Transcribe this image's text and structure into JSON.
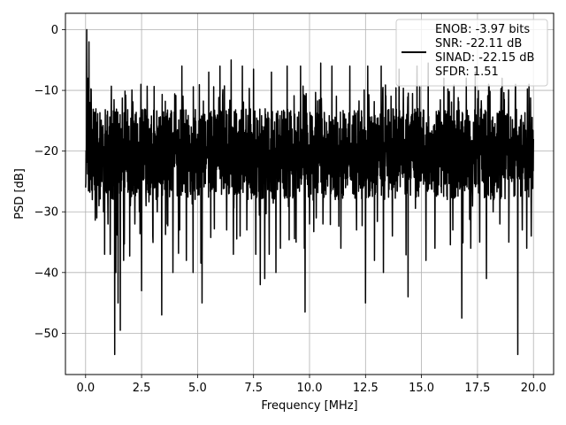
{
  "chart_data": {
    "type": "line",
    "xlabel": "Frequency [MHz]",
    "ylabel": "PSD [dB]",
    "xlim": [
      -0.9,
      20.9
    ],
    "ylim": [
      -56.8,
      2.7
    ],
    "xticks": [
      0.0,
      2.5,
      5.0,
      7.5,
      10.0,
      12.5,
      15.0,
      17.5,
      20.0
    ],
    "xtick_labels": [
      "0.0",
      "2.5",
      "5.0",
      "7.5",
      "10.0",
      "12.5",
      "15.0",
      "17.5",
      "20.0"
    ],
    "yticks": [
      0,
      -10,
      -20,
      -30,
      -40,
      -50
    ],
    "ytick_labels": [
      "0",
      "−10",
      "−20",
      "−30",
      "−40",
      "−50"
    ],
    "grid": true,
    "legend_position": "top-right",
    "legend_lines": [
      "ENOB: -3.97 bits",
      "SNR: -22.11 dB",
      "SINAD: -22.15 dB",
      "SFDR: 1.51"
    ],
    "series": [
      {
        "color": "#000000",
        "x_range": [
          0,
          20
        ],
        "baseline_db": -18,
        "spread_db": 8,
        "points": [
          [
            0.0,
            -26
          ],
          [
            0.05,
            0
          ],
          [
            0.1,
            -8
          ],
          [
            0.15,
            -2
          ],
          [
            0.2,
            -12
          ],
          [
            0.3,
            -28
          ],
          [
            0.5,
            -31
          ],
          [
            0.6,
            -29
          ],
          [
            0.8,
            -30
          ],
          [
            0.85,
            -37
          ],
          [
            1.0,
            -32
          ],
          [
            1.1,
            -37
          ],
          [
            1.3,
            -53.5
          ],
          [
            1.35,
            -40
          ],
          [
            1.45,
            -45
          ],
          [
            1.55,
            -49.5
          ],
          [
            1.7,
            -38
          ],
          [
            2.0,
            -29
          ],
          [
            2.2,
            -32
          ],
          [
            2.4,
            -30
          ],
          [
            2.5,
            -43
          ],
          [
            2.7,
            -29
          ],
          [
            3.0,
            -34
          ],
          [
            3.2,
            -30
          ],
          [
            3.4,
            -47
          ],
          [
            3.6,
            -32
          ],
          [
            3.9,
            -40
          ],
          [
            4.2,
            -33
          ],
          [
            4.5,
            -38
          ],
          [
            4.8,
            -40
          ],
          [
            5.2,
            -45
          ],
          [
            5.5,
            -31
          ],
          [
            5.7,
            -26
          ],
          [
            6.0,
            -34
          ],
          [
            6.3,
            -33
          ],
          [
            6.6,
            -37
          ],
          [
            6.9,
            -34
          ],
          [
            7.2,
            -33
          ],
          [
            7.6,
            -37
          ],
          [
            7.8,
            -42
          ],
          [
            8.0,
            -41
          ],
          [
            8.2,
            -37
          ],
          [
            8.5,
            -40
          ],
          [
            8.7,
            -36
          ],
          [
            9.0,
            -34
          ],
          [
            9.4,
            -35
          ],
          [
            9.8,
            -46.5
          ],
          [
            10.0,
            -32
          ],
          [
            10.3,
            -31
          ],
          [
            10.6,
            -32
          ],
          [
            11.0,
            -34
          ],
          [
            11.4,
            -36
          ],
          [
            11.8,
            -30
          ],
          [
            12.1,
            -33
          ],
          [
            12.5,
            -45
          ],
          [
            12.9,
            -38
          ],
          [
            13.3,
            -40
          ],
          [
            13.7,
            -34
          ],
          [
            14.0,
            -43
          ],
          [
            14.4,
            -44
          ],
          [
            14.8,
            -42
          ],
          [
            15.2,
            -38
          ],
          [
            15.6,
            -36
          ],
          [
            16.0,
            -32
          ],
          [
            16.4,
            -33
          ],
          [
            16.8,
            -47.5
          ],
          [
            17.2,
            -36
          ],
          [
            17.6,
            -35
          ],
          [
            17.9,
            -41
          ],
          [
            18.2,
            -30
          ],
          [
            18.5,
            -32
          ],
          [
            18.9,
            -35
          ],
          [
            19.2,
            -35
          ],
          [
            19.3,
            -53.5
          ],
          [
            19.5,
            -33
          ],
          [
            19.7,
            -36
          ],
          [
            19.9,
            -34
          ],
          [
            20.0,
            -18
          ]
        ],
        "peaks": [
          [
            4.3,
            -6
          ],
          [
            5.5,
            -7
          ],
          [
            6.0,
            -6
          ],
          [
            6.5,
            -5
          ],
          [
            7.0,
            -6
          ],
          [
            7.5,
            -6.5
          ],
          [
            8.3,
            -7
          ],
          [
            9.0,
            -6
          ],
          [
            9.6,
            -6
          ],
          [
            10.5,
            -5.5
          ],
          [
            11.0,
            -6
          ],
          [
            11.8,
            -6
          ],
          [
            12.6,
            -6
          ],
          [
            13.2,
            -6
          ],
          [
            14.0,
            -6.5
          ],
          [
            14.8,
            -6
          ],
          [
            15.3,
            -5.5
          ],
          [
            16.0,
            -8
          ],
          [
            17.0,
            -8
          ],
          [
            17.4,
            -7
          ],
          [
            18.0,
            -9
          ],
          [
            18.6,
            -8
          ],
          [
            19.2,
            -9
          ],
          [
            19.8,
            -9
          ]
        ]
      }
    ]
  }
}
